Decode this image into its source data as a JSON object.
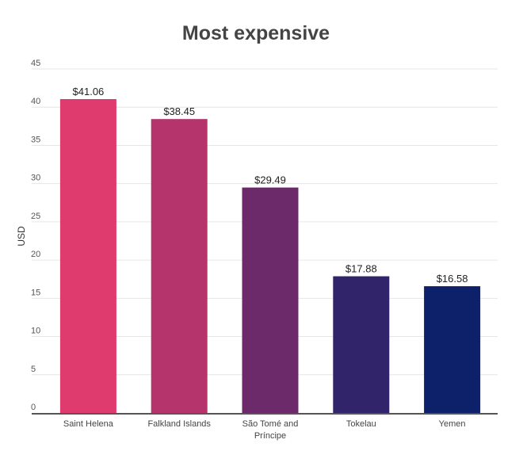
{
  "chart_data": {
    "type": "bar",
    "title": "Most expensive",
    "xlabel": "",
    "ylabel": "USD",
    "ylim": [
      0,
      45
    ],
    "yticks": [
      0,
      5,
      10,
      15,
      20,
      25,
      30,
      35,
      40,
      45
    ],
    "grid": true,
    "categories": [
      "Saint Helena",
      "Falkland Islands",
      "São Tomé and Príncipe",
      "Tokelau",
      "Yemen"
    ],
    "category_lines": [
      [
        "Saint Helena"
      ],
      [
        "Falkland Islands"
      ],
      [
        "São Tomé and",
        "Príncipe"
      ],
      [
        "Tokelau"
      ],
      [
        "Yemen"
      ]
    ],
    "values": [
      41.06,
      38.45,
      29.49,
      17.88,
      16.58
    ],
    "data_labels": [
      "$41.06",
      "$38.45",
      "$29.49",
      "$17.88",
      "$16.58"
    ],
    "colors": [
      "#e03b6e",
      "#b5346c",
      "#6d2a6a",
      "#32246a",
      "#0d216a"
    ]
  }
}
